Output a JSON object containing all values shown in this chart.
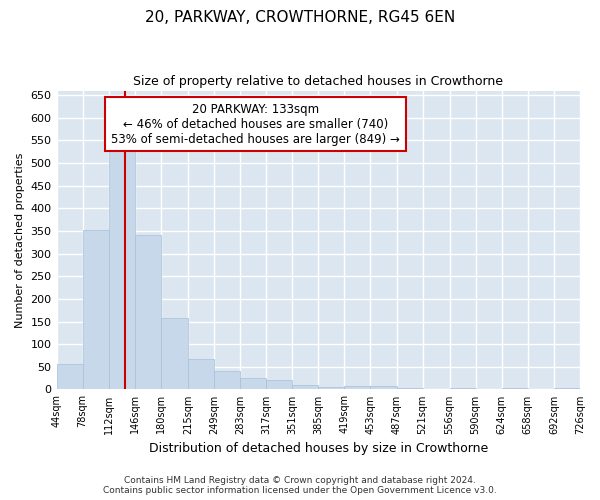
{
  "title": "20, PARKWAY, CROWTHORNE, RG45 6EN",
  "subtitle": "Size of property relative to detached houses in Crowthorne",
  "xlabel": "Distribution of detached houses by size in Crowthorne",
  "ylabel": "Number of detached properties",
  "bar_color": "#c8d8eb",
  "bar_edge_color": "#a8bfd8",
  "background_color": "#dce6f0",
  "grid_color": "#ffffff",
  "vline_x": 133,
  "vline_color": "#cc0000",
  "bin_edges": [
    44,
    78,
    112,
    146,
    180,
    215,
    249,
    283,
    317,
    351,
    385,
    419,
    453,
    487,
    521,
    556,
    590,
    624,
    658,
    692,
    726
  ],
  "bar_heights": [
    57,
    353,
    537,
    340,
    157,
    68,
    40,
    25,
    20,
    10,
    5,
    8,
    8,
    3,
    0,
    4,
    0,
    3,
    0,
    4
  ],
  "ylim": [
    0,
    660
  ],
  "yticks": [
    0,
    50,
    100,
    150,
    200,
    250,
    300,
    350,
    400,
    450,
    500,
    550,
    600,
    650
  ],
  "annotation_text": "20 PARKWAY: 133sqm\n← 46% of detached houses are smaller (740)\n53% of semi-detached houses are larger (849) →",
  "annotation_box_color": "#ffffff",
  "annotation_box_edge": "#cc0000",
  "footer_line1": "Contains HM Land Registry data © Crown copyright and database right 2024.",
  "footer_line2": "Contains public sector information licensed under the Open Government Licence v3.0.",
  "tick_labels": [
    "44sqm",
    "78sqm",
    "112sqm",
    "146sqm",
    "180sqm",
    "215sqm",
    "249sqm",
    "283sqm",
    "317sqm",
    "351sqm",
    "385sqm",
    "419sqm",
    "453sqm",
    "487sqm",
    "521sqm",
    "556sqm",
    "590sqm",
    "624sqm",
    "658sqm",
    "692sqm",
    "726sqm"
  ]
}
